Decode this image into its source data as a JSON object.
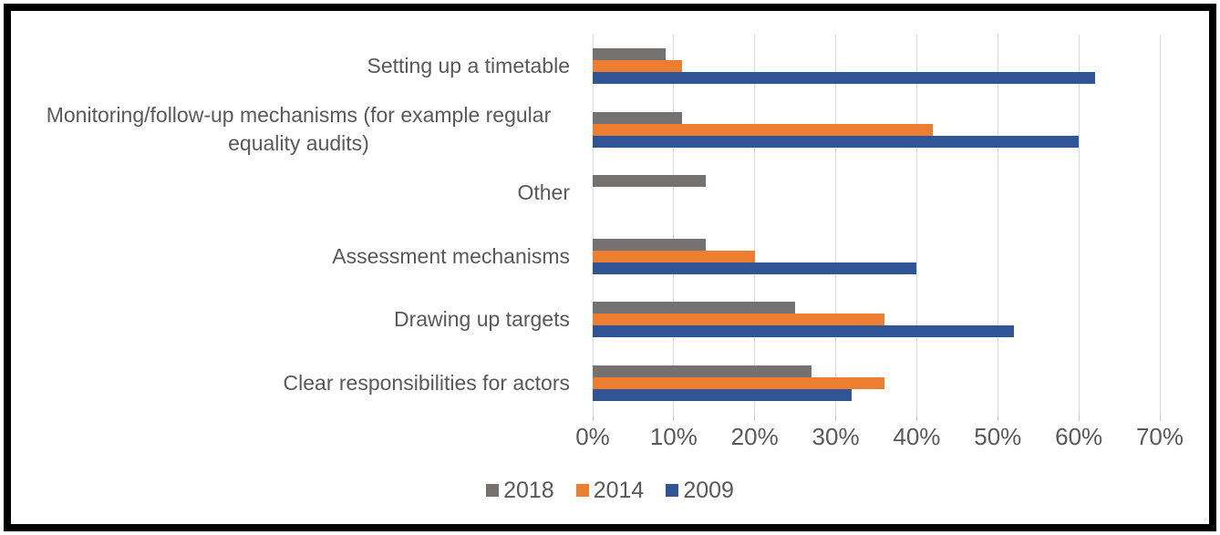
{
  "chart_data": {
    "type": "bar",
    "orientation": "horizontal",
    "title": "",
    "xlabel": "",
    "ylabel": "",
    "categories": [
      "Setting up a timetable",
      "Monitoring/follow-up mechanisms (for example regular equality audits)",
      "Other",
      "Assessment mechanisms",
      "Drawing up targets",
      "Clear responsibilities for actors"
    ],
    "series": [
      {
        "name": "2018",
        "color": "#767171",
        "values": [
          9,
          11,
          14,
          14,
          25,
          27
        ]
      },
      {
        "name": "2014",
        "color": "#ED7D31",
        "values": [
          11,
          42,
          0,
          20,
          36,
          36
        ]
      },
      {
        "name": "2009",
        "color": "#2F5596",
        "values": [
          62,
          60,
          0,
          40,
          52,
          32
        ]
      }
    ],
    "x_ticks": [
      "0%",
      "10%",
      "20%",
      "30%",
      "40%",
      "50%",
      "60%",
      "70%"
    ],
    "xlim": [
      0,
      70
    ],
    "grid": "vertical-only",
    "legend_position": "bottom",
    "legend": [
      "2018",
      "2014",
      "2009"
    ],
    "value_unit": "%"
  },
  "colors": {
    "background": "#FFFFFF",
    "border": "#000000",
    "gridline": "#D9D9D9",
    "tick": "#C6C6C6",
    "text": "#595959"
  }
}
